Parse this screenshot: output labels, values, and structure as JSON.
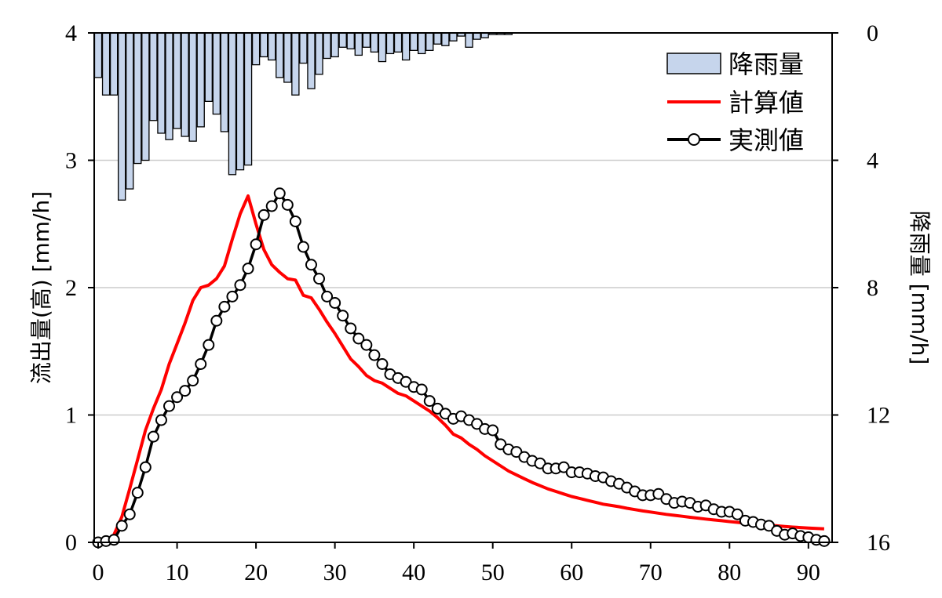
{
  "chart_data": {
    "type": "line",
    "xlabel": "",
    "ylabel": "流出量(高) [mm/h]",
    "y2label": "降雨量 [mm/h]",
    "xlim": [
      -0.5,
      93.0
    ],
    "ylim": [
      0,
      4
    ],
    "y2lim": [
      0,
      16
    ],
    "y2_inverted": true,
    "x_ticks": [
      "0",
      "10",
      "20",
      "30",
      "40",
      "50",
      "60",
      "70",
      "80",
      "90"
    ],
    "y_ticks": [
      "0",
      "1",
      "2",
      "3",
      "4"
    ],
    "y2_ticks": [
      "0",
      "4",
      "8",
      "12",
      "16"
    ],
    "grid": "horizontal",
    "legend_position": "top-right",
    "colors": {
      "rainfall_fill": "#c6d5ec",
      "rainfall_edge": "#000000",
      "calculated": "#ff0000",
      "observed": "#000000",
      "grid": "#cccccc"
    },
    "series": [
      {
        "name": "降雨量",
        "type": "bar",
        "axis": "right",
        "x": [
          0,
          1,
          2,
          3,
          4,
          5,
          6,
          7,
          8,
          9,
          10,
          11,
          12,
          13,
          14,
          15,
          16,
          17,
          18,
          19,
          20,
          21,
          22,
          23,
          24,
          25,
          26,
          27,
          28,
          29,
          30,
          31,
          32,
          33,
          34,
          35,
          36,
          37,
          38,
          39,
          40,
          41,
          42,
          43,
          44,
          45,
          46,
          47,
          48,
          49,
          50,
          51,
          52
        ],
        "values": [
          1.4,
          1.95,
          1.95,
          5.25,
          4.9,
          4.1,
          4.0,
          2.75,
          3.15,
          3.35,
          3.0,
          3.25,
          3.4,
          2.95,
          2.15,
          2.55,
          3.1,
          4.45,
          4.3,
          4.15,
          1.0,
          0.75,
          0.85,
          1.4,
          1.55,
          1.95,
          0.95,
          1.75,
          1.3,
          0.8,
          0.75,
          0.45,
          0.5,
          0.7,
          0.45,
          0.6,
          0.9,
          0.65,
          0.6,
          0.85,
          0.55,
          0.65,
          0.55,
          0.35,
          0.4,
          0.25,
          0.1,
          0.45,
          0.2,
          0.15,
          0.05,
          0.05,
          0.05
        ]
      },
      {
        "name": "計算値",
        "type": "line",
        "axis": "left",
        "x": [
          0,
          1,
          2,
          3,
          4,
          5,
          6,
          7,
          8,
          9,
          10,
          11,
          12,
          13,
          14,
          15,
          16,
          17,
          18,
          19,
          20,
          21,
          22,
          23,
          24,
          25,
          26,
          27,
          28,
          29,
          30,
          31,
          32,
          33,
          34,
          35,
          36,
          37,
          38,
          39,
          40,
          41,
          42,
          43,
          44,
          45,
          46,
          47,
          48,
          49,
          50,
          51,
          52,
          53,
          54,
          55,
          56,
          57,
          58,
          59,
          60,
          61,
          62,
          63,
          64,
          65,
          66,
          67,
          68,
          69,
          70,
          71,
          72,
          73,
          74,
          75,
          76,
          77,
          78,
          79,
          80,
          81,
          82,
          83,
          84,
          85,
          86,
          87,
          88,
          89,
          90,
          91,
          92
        ],
        "values": [
          0.0,
          0.01,
          0.06,
          0.2,
          0.42,
          0.65,
          0.88,
          1.05,
          1.2,
          1.4,
          1.56,
          1.72,
          1.9,
          2.0,
          2.02,
          2.07,
          2.17,
          2.38,
          2.58,
          2.72,
          2.5,
          2.3,
          2.18,
          2.12,
          2.07,
          2.06,
          1.94,
          1.92,
          1.83,
          1.73,
          1.64,
          1.54,
          1.44,
          1.38,
          1.31,
          1.27,
          1.25,
          1.21,
          1.17,
          1.15,
          1.11,
          1.07,
          1.03,
          0.98,
          0.92,
          0.85,
          0.82,
          0.77,
          0.73,
          0.68,
          0.64,
          0.6,
          0.56,
          0.53,
          0.5,
          0.47,
          0.445,
          0.42,
          0.4,
          0.38,
          0.36,
          0.345,
          0.33,
          0.315,
          0.3,
          0.29,
          0.28,
          0.268,
          0.257,
          0.247,
          0.238,
          0.229,
          0.22,
          0.212,
          0.205,
          0.197,
          0.19,
          0.183,
          0.176,
          0.17,
          0.163,
          0.157,
          0.151,
          0.145,
          0.14,
          0.135,
          0.13,
          0.125,
          0.12,
          0.116,
          0.112,
          0.109,
          0.106
        ]
      },
      {
        "name": "実測値",
        "type": "line-marker",
        "axis": "left",
        "x": [
          0,
          1,
          2,
          3,
          4,
          5,
          6,
          7,
          8,
          9,
          10,
          11,
          12,
          13,
          14,
          15,
          16,
          17,
          18,
          19,
          20,
          21,
          22,
          23,
          24,
          25,
          26,
          27,
          28,
          29,
          30,
          31,
          32,
          33,
          34,
          35,
          36,
          37,
          38,
          39,
          40,
          41,
          42,
          43,
          44,
          45,
          46,
          47,
          48,
          49,
          50,
          51,
          52,
          53,
          54,
          55,
          56,
          57,
          58,
          59,
          60,
          61,
          62,
          63,
          64,
          65,
          66,
          67,
          68,
          69,
          70,
          71,
          72,
          73,
          74,
          75,
          76,
          77,
          78,
          79,
          80,
          81,
          82,
          83,
          84,
          85,
          86,
          87,
          88,
          89,
          90,
          91,
          92
        ],
        "values": [
          0.0,
          0.01,
          0.02,
          0.13,
          0.22,
          0.39,
          0.59,
          0.83,
          0.96,
          1.07,
          1.14,
          1.19,
          1.27,
          1.4,
          1.55,
          1.74,
          1.85,
          1.93,
          2.02,
          2.15,
          2.34,
          2.57,
          2.64,
          2.74,
          2.65,
          2.52,
          2.32,
          2.18,
          2.07,
          1.93,
          1.88,
          1.78,
          1.68,
          1.6,
          1.55,
          1.47,
          1.4,
          1.32,
          1.29,
          1.26,
          1.22,
          1.2,
          1.11,
          1.05,
          1.01,
          0.97,
          0.99,
          0.96,
          0.93,
          0.89,
          0.88,
          0.77,
          0.73,
          0.71,
          0.67,
          0.64,
          0.62,
          0.58,
          0.58,
          0.59,
          0.55,
          0.55,
          0.54,
          0.52,
          0.51,
          0.48,
          0.46,
          0.43,
          0.4,
          0.37,
          0.37,
          0.38,
          0.34,
          0.31,
          0.32,
          0.31,
          0.28,
          0.29,
          0.26,
          0.24,
          0.24,
          0.22,
          0.17,
          0.16,
          0.14,
          0.13,
          0.09,
          0.06,
          0.07,
          0.05,
          0.04,
          0.02,
          0.01
        ]
      }
    ]
  }
}
